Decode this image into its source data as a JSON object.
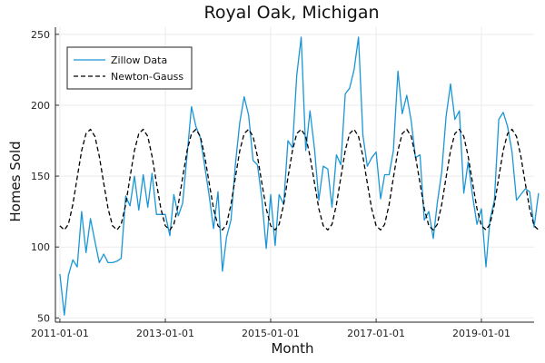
{
  "chart_data": {
    "type": "line",
    "title": "Royal Oak, Michigan",
    "xlabel": "Month",
    "ylabel": "Homes Sold",
    "x_ticks": [
      "2011-01-01",
      "2013-01-01",
      "2015-01-01",
      "2017-01-01",
      "2019-01-01"
    ],
    "y_ticks": [
      50,
      100,
      150,
      200,
      250
    ],
    "xlim": [
      "2010-12-01",
      "2020-01-01"
    ],
    "ylim": [
      47,
      255
    ],
    "grid": true,
    "legend": "top-left",
    "series": [
      {
        "name": "Zillow Data",
        "style": "solid",
        "color": "#1a96d6",
        "start": "2011-01-01",
        "frequency": "monthly",
        "values": [
          81,
          52,
          80,
          91,
          86,
          125,
          96,
          120,
          104,
          89,
          95,
          89,
          89,
          90,
          92,
          136,
          129,
          150,
          126,
          151,
          128,
          152,
          123,
          123,
          123,
          108,
          137,
          122,
          131,
          165,
          199,
          185,
          177,
          157,
          136,
          113,
          139,
          83,
          107,
          119,
          158,
          188,
          206,
          193,
          161,
          158,
          134,
          99,
          137,
          101,
          137,
          130,
          175,
          170,
          221,
          248,
          168,
          196,
          169,
          133,
          157,
          155,
          128,
          165,
          158,
          208,
          212,
          225,
          248,
          179,
          157,
          163,
          167,
          134,
          151,
          151,
          168,
          224,
          194,
          207,
          189,
          163,
          165,
          119,
          125,
          106,
          131,
          153,
          192,
          215,
          190,
          196,
          138,
          160,
          136,
          116,
          127,
          86,
          119,
          133,
          190,
          195,
          185,
          167,
          133,
          137,
          141,
          139,
          114,
          138
        ]
      },
      {
        "name": "Newton-Gauss",
        "style": "dashed",
        "color": "#000000",
        "start": "2011-01-01",
        "frequency": "monthly",
        "values": [
          115,
          112,
          116,
          130,
          149,
          168,
          180,
          183,
          178,
          164,
          145,
          127,
          115,
          112,
          116,
          130,
          149,
          168,
          180,
          183,
          178,
          164,
          145,
          127,
          115,
          112,
          116,
          130,
          149,
          168,
          180,
          183,
          178,
          164,
          145,
          127,
          115,
          112,
          116,
          130,
          149,
          168,
          180,
          183,
          178,
          164,
          145,
          127,
          115,
          112,
          116,
          130,
          149,
          168,
          180,
          183,
          178,
          164,
          145,
          127,
          115,
          112,
          116,
          130,
          149,
          168,
          180,
          183,
          178,
          164,
          145,
          127,
          115,
          112,
          116,
          130,
          149,
          168,
          180,
          183,
          178,
          164,
          145,
          127,
          115,
          112,
          116,
          130,
          149,
          168,
          180,
          183,
          178,
          164,
          145,
          127,
          115,
          112,
          116,
          130,
          149,
          168,
          180,
          183,
          178,
          164,
          145,
          127,
          115,
          112
        ]
      }
    ]
  }
}
